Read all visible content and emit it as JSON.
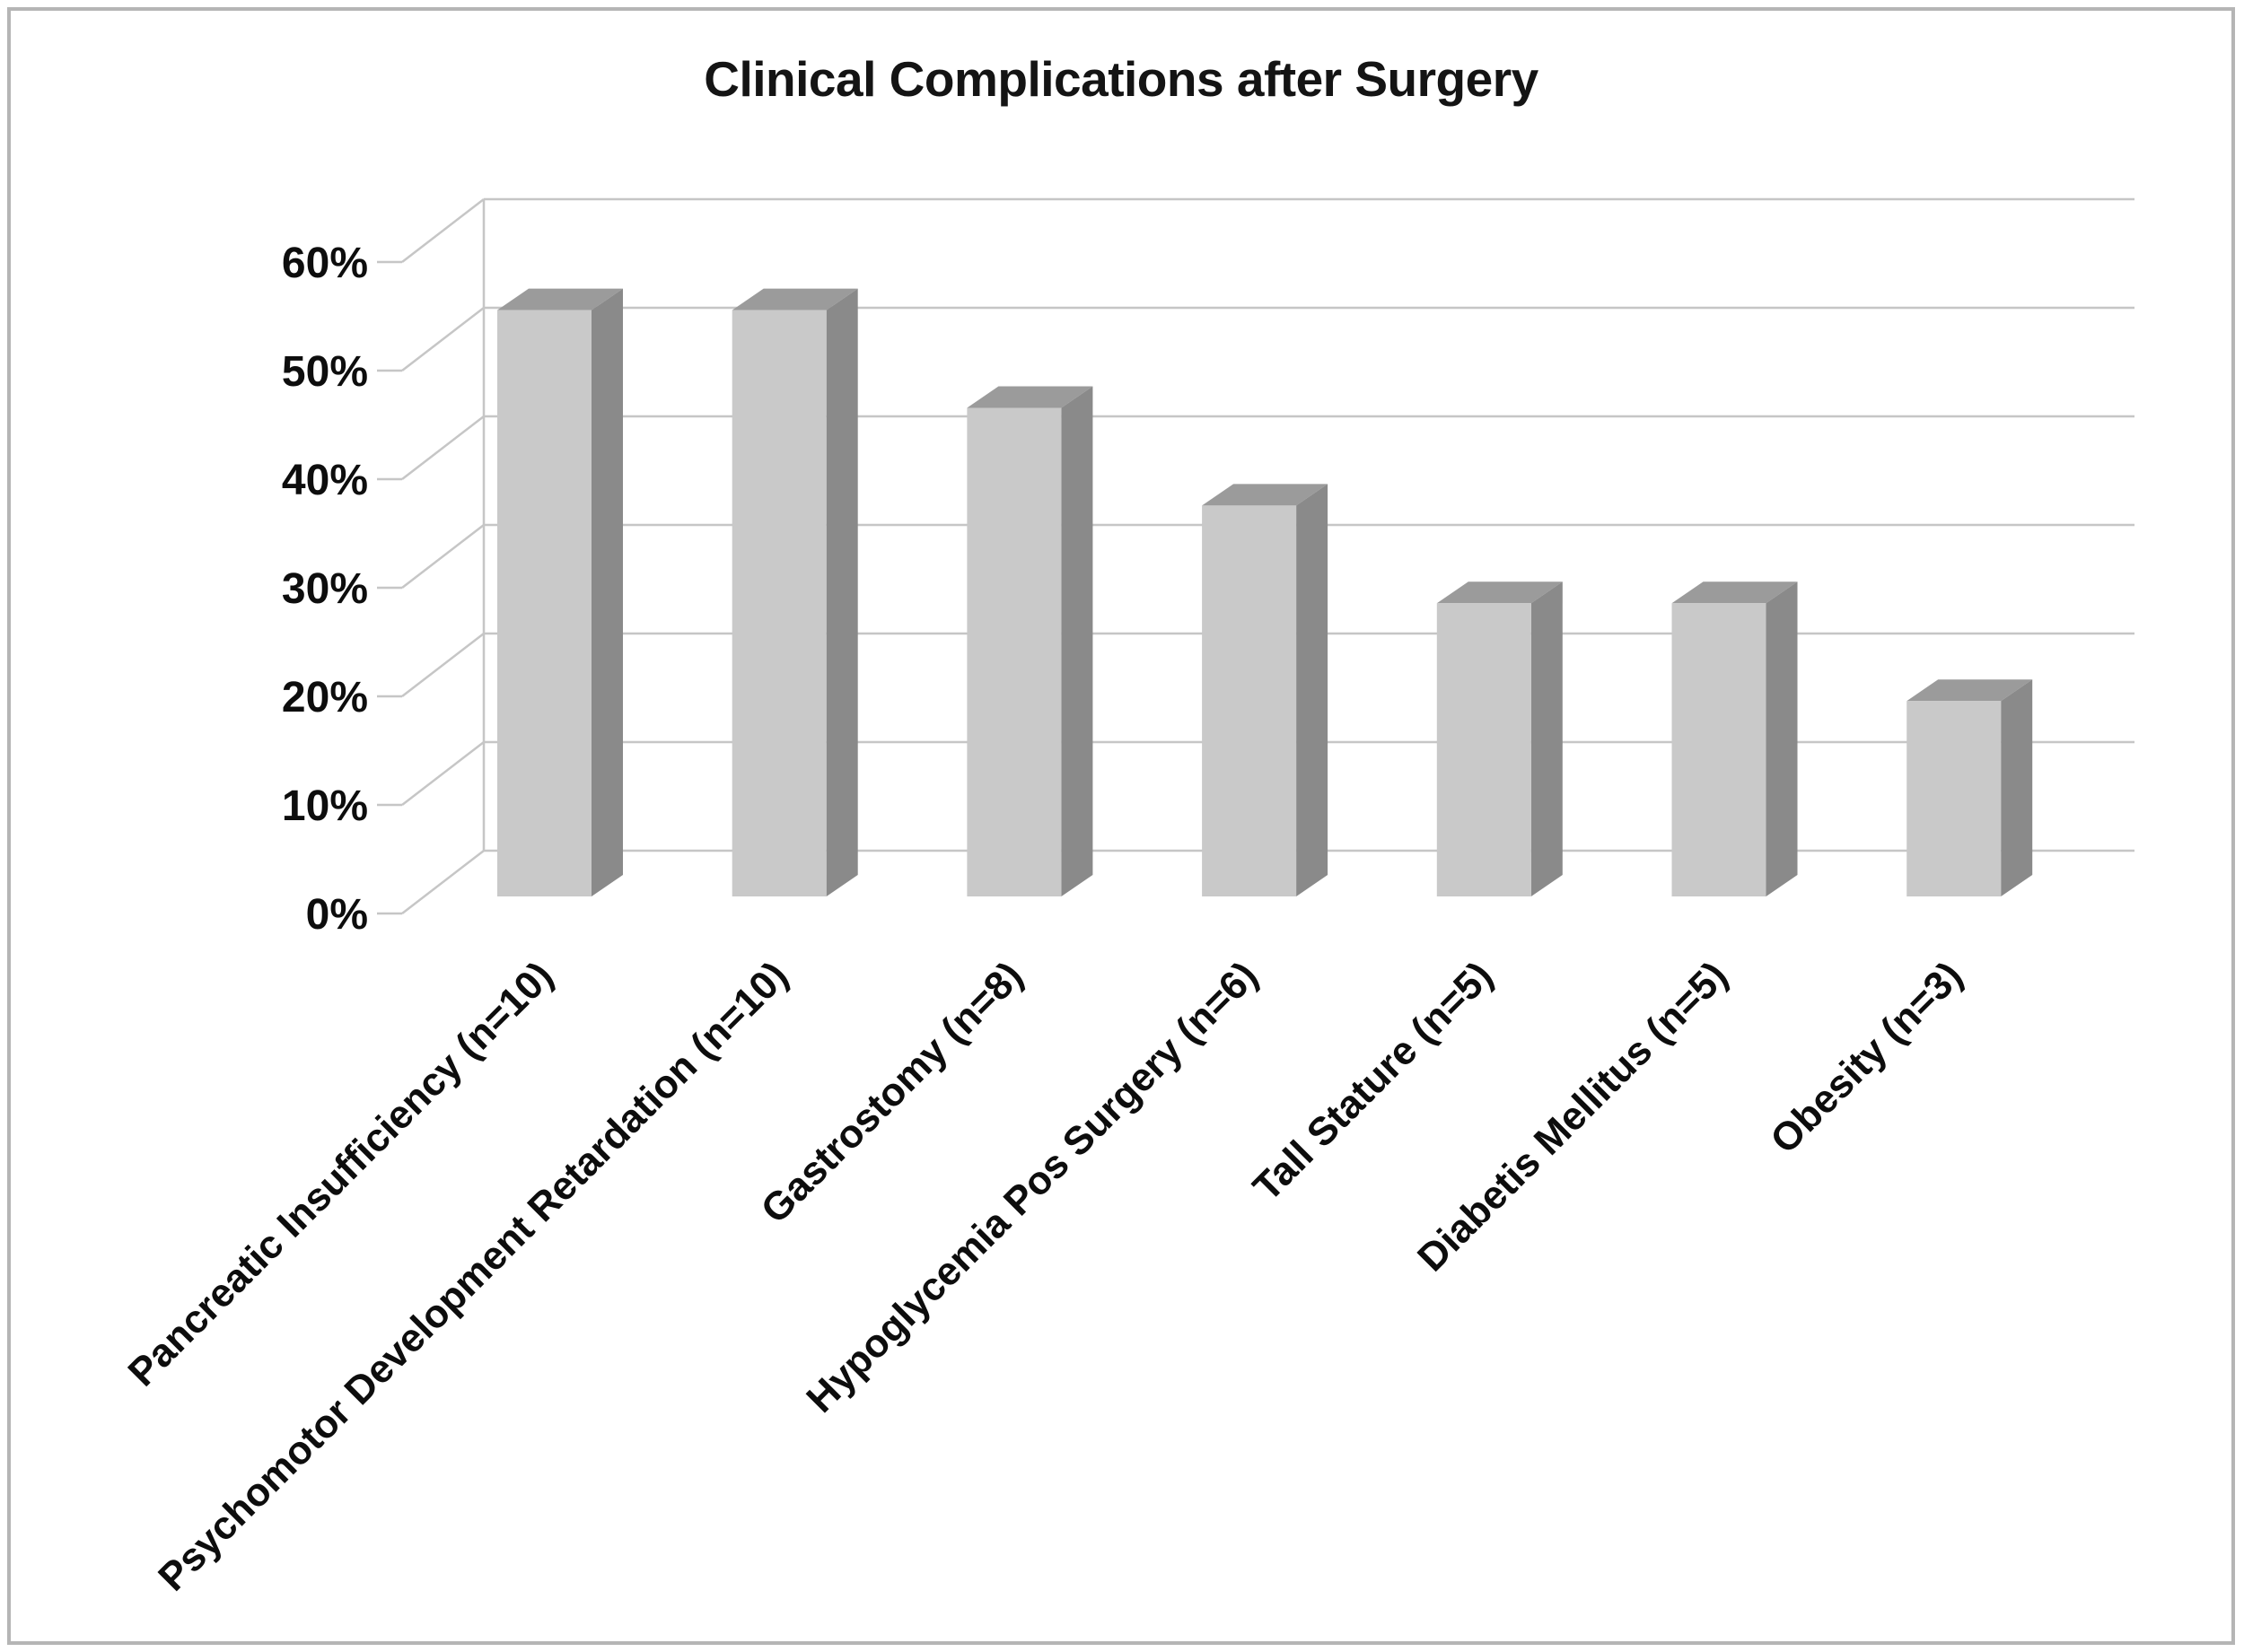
{
  "chart_data": {
    "type": "bar",
    "variant": "3d-column",
    "title": "Clinical Complications after Surgery",
    "categories": [
      "Pancreatic Insufficiency (n=10)",
      "Psychomotor Development Retardation (n=10)",
      "Gastrostomy (n=8)",
      "Hypoglycemia Pos Surgery (n=6)",
      "Tall Stature (n=5)",
      "Diabetis Mellitus (n=5)",
      "Obesity (n=3)"
    ],
    "counts": [
      10,
      10,
      8,
      6,
      5,
      5,
      3
    ],
    "values_percent": [
      54,
      54,
      45,
      36,
      27,
      27,
      18
    ],
    "y_axis": {
      "tick_labels": [
        "0%",
        "10%",
        "20%",
        "30%",
        "40%",
        "50%",
        "60%"
      ],
      "min": 0,
      "max": 60,
      "step": 10
    },
    "grid": true,
    "legend": false,
    "xlabel": "",
    "ylabel": "",
    "colors": {
      "bar_front": "#c9c9c9",
      "bar_top": "#9b9b9b",
      "bar_side": "#8a8a8a",
      "gridline": "#c6c6c6",
      "text": "#0d0d0d",
      "frame_border": "#b5b5b5",
      "background": "#ffffff"
    }
  }
}
